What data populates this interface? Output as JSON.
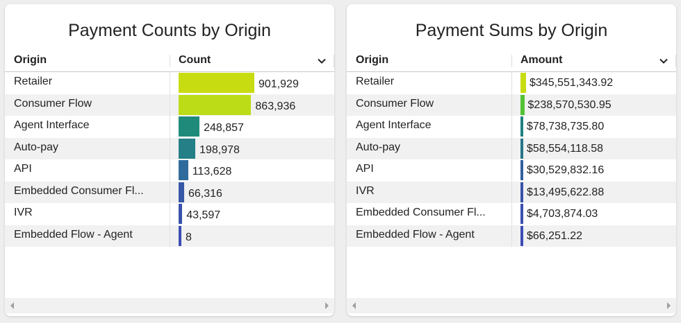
{
  "panels": [
    {
      "title": "Payment Counts by Origin",
      "col1": "Origin",
      "col2": "Count",
      "bar_style": "wide",
      "rows": [
        {
          "origin": "Retailer",
          "value": "901,929",
          "num": 901929,
          "color": "#c8dc12"
        },
        {
          "origin": "Consumer Flow",
          "value": "863,936",
          "num": 863936,
          "color": "#bcdc18"
        },
        {
          "origin": "Agent Interface",
          "value": "248,857",
          "num": 248857,
          "color": "#1f8a7a"
        },
        {
          "origin": "Auto-pay",
          "value": "198,978",
          "num": 198978,
          "color": "#247f86"
        },
        {
          "origin": "API",
          "value": "113,628",
          "num": 113628,
          "color": "#2f6a9c"
        },
        {
          "origin": "Embedded Consumer Fl...",
          "value": "66,316",
          "num": 66316,
          "color": "#3659a8"
        },
        {
          "origin": "IVR",
          "value": "43,597",
          "num": 43597,
          "color": "#3a52ac"
        },
        {
          "origin": "Embedded Flow - Agent",
          "value": "8",
          "num": 8,
          "color": "#3d4db4"
        }
      ]
    },
    {
      "title": "Payment Sums by Origin",
      "col1": "Origin",
      "col2": "Amount",
      "bar_style": "thin",
      "rows": [
        {
          "origin": "Retailer",
          "value": "$345,551,343.92",
          "num": 345551343.92,
          "color": "#c8dc12"
        },
        {
          "origin": "Consumer Flow",
          "value": "$238,570,530.95",
          "num": 238570530.95,
          "color": "#52c234"
        },
        {
          "origin": "Agent Interface",
          "value": "$78,738,735.80",
          "num": 78738735.8,
          "color": "#1f8080"
        },
        {
          "origin": "Auto-pay",
          "value": "$58,554,118.58",
          "num": 58554118.58,
          "color": "#257488"
        },
        {
          "origin": "API",
          "value": "$30,529,832.16",
          "num": 30529832.16,
          "color": "#325f9e"
        },
        {
          "origin": "IVR",
          "value": "$13,495,622.88",
          "num": 13495622.88,
          "color": "#3853a8"
        },
        {
          "origin": "Embedded Consumer Fl...",
          "value": "$4,703,874.03",
          "num": 4703874.03,
          "color": "#3a4eae"
        },
        {
          "origin": "Embedded Flow - Agent",
          "value": "$66,251.22",
          "num": 66251.22,
          "color": "#3d4db4"
        }
      ]
    }
  ]
}
